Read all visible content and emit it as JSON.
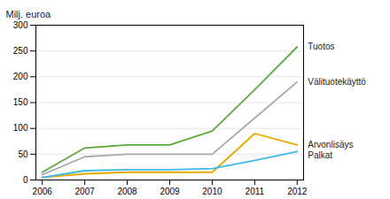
{
  "chart_data": {
    "type": "line",
    "ylabel": "Milj. euroa",
    "x": [
      2006,
      2007,
      2008,
      2009,
      2010,
      2011,
      2012
    ],
    "series": [
      {
        "name": "Tuotos",
        "color": "#5aaa3c",
        "values": [
          15,
          62,
          68,
          68,
          95,
          175,
          258
        ]
      },
      {
        "name": "Välituotekäyttö",
        "color": "#aaaaaa",
        "values": [
          10,
          45,
          50,
          50,
          50,
          120,
          190
        ]
      },
      {
        "name": "Arvonlisäys",
        "color": "#e8a800",
        "values": [
          5,
          12,
          15,
          15,
          15,
          90,
          68
        ]
      },
      {
        "name": "Palkat",
        "color": "#3db8e8",
        "values": [
          5,
          18,
          20,
          20,
          22,
          38,
          55
        ]
      }
    ],
    "xlim": [
      2005.85,
      2012.15
    ],
    "xticks": [
      2006,
      2007,
      2008,
      2009,
      2010,
      2011,
      2012
    ],
    "ylim": [
      0,
      300
    ],
    "yticks": [
      0,
      50,
      100,
      150,
      200,
      250,
      300
    ],
    "grid": true
  }
}
